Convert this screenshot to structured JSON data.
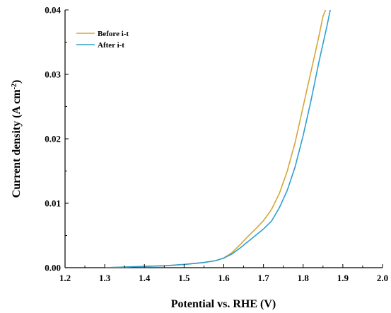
{
  "chart_data": {
    "type": "line",
    "title": "",
    "xlabel": "Potential vs. RHE (V)",
    "ylabel_main": "Current density (A cm",
    "ylabel_sup": "-2",
    "ylabel_end": ")",
    "xlim": [
      1.2,
      2.0
    ],
    "ylim": [
      0.0,
      0.04
    ],
    "xticks": [
      "1.2",
      "1.3",
      "1.4",
      "1.5",
      "1.6",
      "1.7",
      "1.8",
      "1.9",
      "2.0"
    ],
    "yticks": [
      "0.00",
      "0.01",
      "0.02",
      "0.03",
      "0.04"
    ],
    "grid": false,
    "legend_position": "top-left",
    "series": [
      {
        "name": "Before i-t",
        "color": "#d4a63a",
        "x": [
          1.3,
          1.35,
          1.4,
          1.45,
          1.5,
          1.55,
          1.58,
          1.6,
          1.62,
          1.64,
          1.66,
          1.68,
          1.7,
          1.72,
          1.74,
          1.76,
          1.78,
          1.8,
          1.82,
          1.84,
          1.85,
          1.86
        ],
        "y": [
          0.0,
          0.0001,
          0.0002,
          0.0003,
          0.0005,
          0.0008,
          0.0011,
          0.0015,
          0.0023,
          0.0035,
          0.0048,
          0.006,
          0.0073,
          0.009,
          0.0115,
          0.015,
          0.0195,
          0.025,
          0.0305,
          0.036,
          0.039,
          0.0405
        ]
      },
      {
        "name": "After i-t",
        "color": "#2f9fcf",
        "x": [
          1.3,
          1.35,
          1.4,
          1.45,
          1.5,
          1.55,
          1.58,
          1.6,
          1.62,
          1.64,
          1.66,
          1.68,
          1.7,
          1.72,
          1.74,
          1.76,
          1.78,
          1.8,
          1.82,
          1.84,
          1.86,
          1.87
        ],
        "y": [
          0.0,
          0.0001,
          0.0002,
          0.0003,
          0.0005,
          0.0008,
          0.0011,
          0.0015,
          0.0021,
          0.003,
          0.004,
          0.005,
          0.006,
          0.0072,
          0.0093,
          0.012,
          0.0157,
          0.0205,
          0.026,
          0.032,
          0.0375,
          0.0405
        ]
      }
    ]
  }
}
